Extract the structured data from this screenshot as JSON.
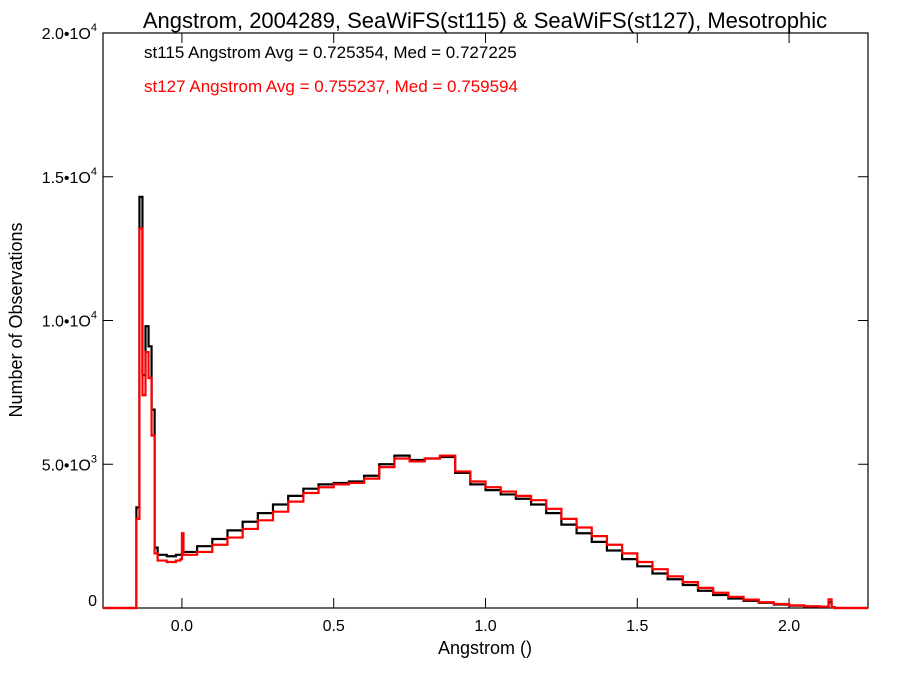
{
  "chart_data": {
    "type": "line",
    "title": "Angstrom, 2004289, SeaWiFS(st115) & SeaWiFS(st127), Mesotrophic",
    "xlabel": "Angstrom ()",
    "ylabel": "Number of Observations",
    "xlim": [
      -0.26,
      2.26
    ],
    "ylim": [
      0,
      20000
    ],
    "step": true,
    "grid": false,
    "x_ticks": [
      {
        "value": 0.0,
        "label": "0.0"
      },
      {
        "value": 0.5,
        "label": "0.5"
      },
      {
        "value": 1.0,
        "label": "1.0"
      },
      {
        "value": 1.5,
        "label": "1.5"
      },
      {
        "value": 2.0,
        "label": "2.0"
      }
    ],
    "y_ticks": [
      {
        "value": 0,
        "mantissa": "0",
        "exponent": ""
      },
      {
        "value": 5000,
        "mantissa": "5.0•1O",
        "exponent": "3"
      },
      {
        "value": 10000,
        "mantissa": "1.0•1O",
        "exponent": "4"
      },
      {
        "value": 15000,
        "mantissa": "1.5•1O",
        "exponent": "4"
      },
      {
        "value": 20000,
        "mantissa": "2.0•1O",
        "exponent": "4"
      }
    ],
    "annotations": [
      {
        "text": "st115 Angstrom Avg = 0.725354, Med = 0.727225",
        "color": "#000000"
      },
      {
        "text": "st127 Angstrom Avg = 0.755237, Med = 0.759594",
        "color": "#ff0000"
      }
    ],
    "series": [
      {
        "color": "#000000",
        "points": [
          [
            -0.26,
            0
          ],
          [
            -0.16,
            0
          ],
          [
            -0.15,
            3500
          ],
          [
            -0.14,
            14300
          ],
          [
            -0.13,
            8100
          ],
          [
            -0.12,
            9800
          ],
          [
            -0.11,
            9100
          ],
          [
            -0.1,
            6900
          ],
          [
            -0.09,
            2100
          ],
          [
            -0.08,
            1850
          ],
          [
            -0.05,
            1800
          ],
          [
            -0.02,
            1850
          ],
          [
            0.0,
            1950
          ],
          [
            0.05,
            2150
          ],
          [
            0.1,
            2400
          ],
          [
            0.15,
            2700
          ],
          [
            0.2,
            3000
          ],
          [
            0.25,
            3300
          ],
          [
            0.3,
            3600
          ],
          [
            0.35,
            3900
          ],
          [
            0.4,
            4150
          ],
          [
            0.45,
            4300
          ],
          [
            0.5,
            4350
          ],
          [
            0.55,
            4400
          ],
          [
            0.6,
            4600
          ],
          [
            0.65,
            5000
          ],
          [
            0.7,
            5300
          ],
          [
            0.75,
            5150
          ],
          [
            0.8,
            5200
          ],
          [
            0.85,
            5250
          ],
          [
            0.9,
            4700
          ],
          [
            0.95,
            4300
          ],
          [
            1.0,
            4100
          ],
          [
            1.05,
            3950
          ],
          [
            1.1,
            3800
          ],
          [
            1.15,
            3600
          ],
          [
            1.2,
            3300
          ],
          [
            1.25,
            2900
          ],
          [
            1.3,
            2600
          ],
          [
            1.35,
            2300
          ],
          [
            1.4,
            2000
          ],
          [
            1.45,
            1700
          ],
          [
            1.5,
            1450
          ],
          [
            1.55,
            1200
          ],
          [
            1.6,
            1000
          ],
          [
            1.65,
            800
          ],
          [
            1.7,
            600
          ],
          [
            1.75,
            450
          ],
          [
            1.8,
            330
          ],
          [
            1.85,
            250
          ],
          [
            1.9,
            180
          ],
          [
            1.95,
            120
          ],
          [
            2.0,
            80
          ],
          [
            2.05,
            50
          ],
          [
            2.1,
            40
          ],
          [
            2.13,
            200
          ],
          [
            2.14,
            30
          ],
          [
            2.15,
            0
          ],
          [
            2.26,
            0
          ]
        ]
      },
      {
        "color": "#ff0000",
        "points": [
          [
            -0.26,
            0
          ],
          [
            -0.16,
            0
          ],
          [
            -0.15,
            3100
          ],
          [
            -0.14,
            13200
          ],
          [
            -0.13,
            7400
          ],
          [
            -0.12,
            8900
          ],
          [
            -0.11,
            8000
          ],
          [
            -0.1,
            6000
          ],
          [
            -0.09,
            1900
          ],
          [
            -0.08,
            1650
          ],
          [
            -0.05,
            1600
          ],
          [
            -0.02,
            1650
          ],
          [
            -0.005,
            1700
          ],
          [
            0.0,
            2600
          ],
          [
            0.005,
            1850
          ],
          [
            0.05,
            1950
          ],
          [
            0.1,
            2200
          ],
          [
            0.15,
            2450
          ],
          [
            0.2,
            2750
          ],
          [
            0.25,
            3050
          ],
          [
            0.3,
            3350
          ],
          [
            0.35,
            3700
          ],
          [
            0.4,
            4000
          ],
          [
            0.45,
            4200
          ],
          [
            0.5,
            4300
          ],
          [
            0.55,
            4350
          ],
          [
            0.6,
            4500
          ],
          [
            0.65,
            4900
          ],
          [
            0.7,
            5200
          ],
          [
            0.75,
            5100
          ],
          [
            0.8,
            5200
          ],
          [
            0.85,
            5300
          ],
          [
            0.9,
            4750
          ],
          [
            0.95,
            4400
          ],
          [
            1.0,
            4200
          ],
          [
            1.05,
            4050
          ],
          [
            1.1,
            3900
          ],
          [
            1.15,
            3750
          ],
          [
            1.2,
            3450
          ],
          [
            1.25,
            3100
          ],
          [
            1.3,
            2800
          ],
          [
            1.35,
            2500
          ],
          [
            1.4,
            2200
          ],
          [
            1.45,
            1900
          ],
          [
            1.5,
            1600
          ],
          [
            1.55,
            1350
          ],
          [
            1.6,
            1100
          ],
          [
            1.65,
            900
          ],
          [
            1.7,
            700
          ],
          [
            1.75,
            530
          ],
          [
            1.8,
            390
          ],
          [
            1.85,
            290
          ],
          [
            1.9,
            200
          ],
          [
            1.95,
            140
          ],
          [
            2.0,
            90
          ],
          [
            2.05,
            60
          ],
          [
            2.1,
            45
          ],
          [
            2.13,
            300
          ],
          [
            2.14,
            30
          ],
          [
            2.15,
            0
          ],
          [
            2.26,
            0
          ]
        ]
      }
    ]
  }
}
